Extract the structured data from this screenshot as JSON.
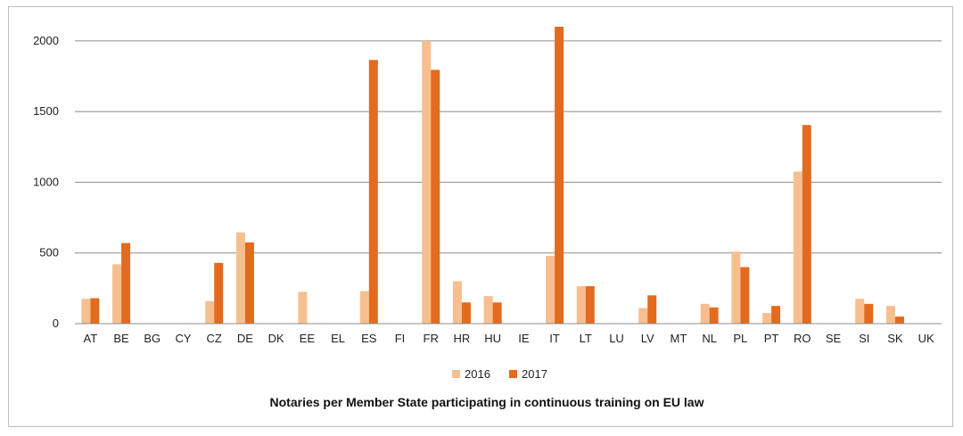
{
  "chart_data": {
    "type": "bar",
    "title": "Notaries per Member State participating in continuous training on EU law",
    "xlabel": "",
    "ylabel": "",
    "ylim": [
      0,
      2100
    ],
    "yticks": [
      0,
      500,
      1000,
      1500,
      2000
    ],
    "grid": true,
    "legend_position": "bottom",
    "categories": [
      "AT",
      "BE",
      "BG",
      "CY",
      "CZ",
      "DE",
      "DK",
      "EE",
      "EL",
      "ES",
      "FI",
      "FR",
      "HR",
      "HU",
      "IE",
      "IT",
      "LT",
      "LU",
      "LV",
      "MT",
      "NL",
      "PL",
      "PT",
      "RO",
      "SE",
      "SI",
      "SK",
      "UK"
    ],
    "series": [
      {
        "name": "2016",
        "color": "#f7bf8f",
        "values": [
          175,
          420,
          0,
          0,
          160,
          645,
          0,
          225,
          0,
          230,
          0,
          2000,
          300,
          195,
          0,
          480,
          265,
          0,
          110,
          0,
          140,
          510,
          75,
          1075,
          0,
          175,
          125,
          0
        ]
      },
      {
        "name": "2017",
        "color": "#e26b1f",
        "values": [
          180,
          570,
          0,
          0,
          430,
          575,
          0,
          0,
          0,
          1865,
          0,
          1795,
          150,
          150,
          0,
          2100,
          265,
          0,
          200,
          0,
          115,
          400,
          125,
          1405,
          0,
          140,
          50,
          0
        ]
      }
    ]
  }
}
